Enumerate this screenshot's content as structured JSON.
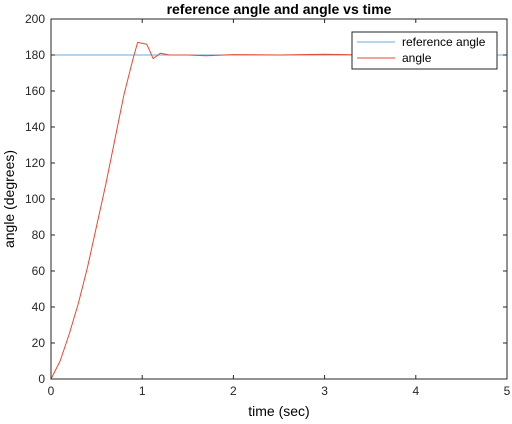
{
  "chart_data": {
    "type": "line",
    "title": "reference angle and angle vs time",
    "xlabel": "time (sec)",
    "ylabel": "angle (degrees)",
    "xlim": [
      0,
      5
    ],
    "ylim": [
      0,
      200
    ],
    "x_ticks": [
      "0",
      "1",
      "2",
      "3",
      "4",
      "5"
    ],
    "y_ticks": [
      "0",
      "20",
      "40",
      "60",
      "80",
      "100",
      "120",
      "140",
      "160",
      "180",
      "200"
    ],
    "grid": false,
    "legend_position": "top-right",
    "series": [
      {
        "name": "reference angle",
        "color": "#6baed6",
        "x": [
          0,
          5
        ],
        "y": [
          180,
          180
        ]
      },
      {
        "name": "angle",
        "color": "#e34a33",
        "x": [
          0,
          0.1,
          0.2,
          0.3,
          0.4,
          0.5,
          0.6,
          0.7,
          0.8,
          0.9,
          0.95,
          1.05,
          1.12,
          1.2,
          1.3,
          1.5,
          1.7,
          2.0,
          2.5,
          3.0,
          3.5,
          4.0,
          4.5
        ],
        "y": [
          0,
          10,
          25,
          42,
          62,
          85,
          108,
          133,
          158,
          178,
          187,
          186,
          178,
          181,
          180,
          180,
          179.6,
          180.2,
          180,
          180.4,
          179.9,
          180,
          180
        ]
      }
    ]
  }
}
